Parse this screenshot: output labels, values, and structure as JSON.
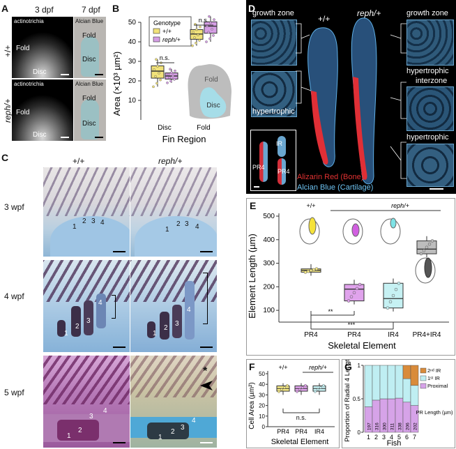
{
  "panels": {
    "A": "A",
    "B": "B",
    "C": "C",
    "D": "D",
    "E": "E",
    "F": "F",
    "G": "G"
  },
  "A": {
    "col_3dpf": "3 dpf",
    "col_7dpf": "7 dpf",
    "row_wt": "+/+",
    "row_mut": "reph/+",
    "actinotrichia": "actinotrichia",
    "alcian_blue": "Alcian Blue",
    "fold": "Fold",
    "disc": "Disc"
  },
  "B": {
    "legend_title": "Genotype",
    "legend_wt": "+/+",
    "legend_mut": "reph/+",
    "ylabel": "Area (×10³ µm²)",
    "xlabel": "Fin Region",
    "ns": "n.s.",
    "schematic_fold": "Fold",
    "schematic_disc": "Disc",
    "colors": {
      "wt": "#f1e27a",
      "mut": "#d59ee4"
    }
  },
  "C": {
    "col_wt": "+/+",
    "col_mut": "reph/+",
    "rows": [
      "3 wpf",
      "4 wpf",
      "5 wpf"
    ],
    "n1": "1",
    "n2": "2",
    "n3": "3",
    "n4": "4",
    "star": "*"
  },
  "D": {
    "growth_zone": "growth zone",
    "hypertrophic": "hypertrophic",
    "interzone": "interzone",
    "wt": "+/+",
    "mut": "reph/+",
    "ir": "IR",
    "pr4": "PR4",
    "legend_red": "Alizarin Red (Bone)",
    "legend_blue": "Alcian Blue (Cartilage)",
    "colors": {
      "red": "#e23232",
      "blue": "#6ec3f2"
    }
  },
  "E": {
    "wt": "+/+",
    "mut": "reph/+",
    "sig1": "**",
    "sig2": "***"
  },
  "F": {
    "wt": "+/+",
    "mut": "reph/+",
    "ylabel": "Cell Area (µm²)",
    "xlabel": "Skeletal Element",
    "ns": "n.s."
  },
  "G": {
    "ylabel": "Proportion of Radial 4 Length",
    "xlabel": "Fish",
    "legend": [
      "2ⁿᵈ IR",
      "1ˢᵗ IR",
      "Proximal"
    ],
    "pr_length_label": "PR Length (µm)",
    "colors": {
      "ir2": "#d98b3a",
      "ir1": "#bfeef2",
      "proximal": "#d6a3e8"
    }
  },
  "chart_data": [
    {
      "type": "box",
      "panel": "B",
      "categories": [
        "Disc",
        "Fold"
      ],
      "series": [
        {
          "name": "+/+",
          "medians": [
            25,
            44
          ]
        },
        {
          "name": "reph/+",
          "medians": [
            22.5,
            48
          ]
        }
      ],
      "ylim": [
        0,
        50
      ],
      "yticks": [
        10,
        20,
        30,
        40,
        50
      ],
      "ylabel": "Area (×10³ µm²)",
      "xlabel": "Fin Region"
    },
    {
      "type": "box",
      "panel": "E",
      "categories": [
        "PR4",
        "PR4",
        "IR4",
        "PR4+IR4"
      ],
      "medians": [
        270,
        190,
        150,
        360
      ],
      "q1": [
        262,
        140,
        110,
        340
      ],
      "q3": [
        276,
        210,
        215,
        395
      ],
      "ylim": [
        50,
        500
      ],
      "yticks": [
        100,
        200,
        300,
        400,
        500
      ],
      "ylabel": "Element Length (µm)",
      "xlabel": "Skeletal Element"
    },
    {
      "type": "box",
      "panel": "F",
      "categories": [
        "PR4",
        "PR4",
        "IR4"
      ],
      "medians": [
        36,
        36,
        36
      ],
      "ylim": [
        0,
        50
      ],
      "yticks": [
        0,
        10,
        20,
        30,
        40,
        50
      ],
      "ylabel": "Cell Area (µm²)",
      "xlabel": "Skeletal Element"
    },
    {
      "type": "bar",
      "panel": "G",
      "stacked": true,
      "categories": [
        "1",
        "2",
        "3",
        "4",
        "5",
        "6",
        "7"
      ],
      "series": [
        {
          "name": "Proximal",
          "values": [
            0.38,
            0.48,
            0.5,
            0.5,
            0.51,
            0.45,
            0.4
          ]
        },
        {
          "name": "1ˢᵗ IR",
          "values": [
            0.62,
            0.52,
            0.5,
            0.5,
            0.49,
            0.35,
            0.3
          ]
        },
        {
          "name": "2ⁿᵈ IR",
          "values": [
            0,
            0,
            0,
            0,
            0,
            0.2,
            0.3
          ]
        }
      ],
      "pr_length": [
        "197",
        "316",
        "300",
        "311",
        "338",
        "206",
        "202"
      ],
      "ylim": [
        0,
        1
      ],
      "yticks": [
        0,
        0.5,
        1
      ],
      "ylabel": "Proportion of Radial 4 Length",
      "xlabel": "Fish"
    }
  ]
}
